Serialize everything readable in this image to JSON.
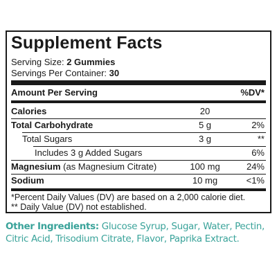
{
  "title": "Supplement Facts",
  "serving_size": {
    "label": "Serving Size:",
    "value": "2 Gummies"
  },
  "servings_per_container": {
    "label": "Servings Per Container:",
    "value": "30"
  },
  "header": {
    "amount_label": "Amount Per Serving",
    "dv_label": "%DV*"
  },
  "rows": [
    {
      "label": "Calories",
      "amount": "20",
      "dv": ""
    },
    {
      "label": "Total Carbohydrate",
      "amount": "5 g",
      "dv": "2%"
    },
    {
      "label": "Total Sugars",
      "amount": "3 g",
      "dv": "**"
    },
    {
      "label": "Includes 3 g Added Sugars",
      "amount": "",
      "dv": "6%"
    },
    {
      "label": "Magnesium",
      "label_detail": "(as Magnesium Citrate)",
      "amount": "100 mg",
      "dv": "24%"
    },
    {
      "label": "Sodium",
      "amount": "10 mg",
      "dv": "<1%"
    }
  ],
  "footnotes": [
    "*Percent Daily Values (DV) are based on a 2,000 calorie diet.",
    "** Daily Value (DV) not established."
  ],
  "other_ingredients": {
    "label": "Other Ingredients:",
    "text": "Glucose Syrup, Sugar, Water, Pectin, Citric Acid, Trisodium Citrate, Flavor, Paprika Extract."
  },
  "colors": {
    "text": "#1a1a1a",
    "accent": "#3aa39a"
  }
}
